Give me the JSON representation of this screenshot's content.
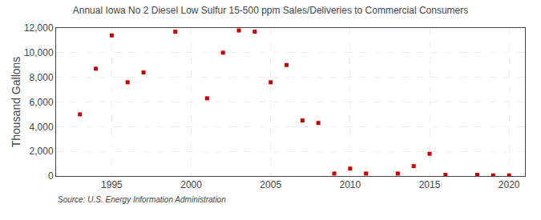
{
  "chart_data": {
    "type": "scatter",
    "title": "Annual Iowa No 2 Diesel Low Sulfur 15-500 ppm Sales/Deliveries to Commercial Consumers",
    "y_label": "Thousand Gallons",
    "annotations": [
      "Source: U.S. Energy Information Administration"
    ],
    "x": [
      1993,
      1994,
      1995,
      1996,
      1997,
      1999,
      2001,
      2002,
      2003,
      2004,
      2005,
      2006,
      2007,
      2008,
      2009,
      2010,
      2011,
      2013,
      2014,
      2015,
      2016,
      2018,
      2019,
      2020
    ],
    "values": [
      5000,
      8700,
      11400,
      7600,
      8400,
      11700,
      6300,
      10000,
      11800,
      11700,
      7600,
      9000,
      4500,
      4300,
      200,
      600,
      200,
      200,
      800,
      1800,
      100,
      100,
      50,
      50
    ],
    "color": "#cc0000",
    "marker": "square",
    "xlim": [
      1991.5,
      2021
    ],
    "xticks": [
      1995,
      2000,
      2005,
      2010,
      2015,
      2020
    ],
    "ylim": [
      0,
      12000
    ],
    "yticks": [
      0,
      {
        "value": 2000,
        "label": "2,000"
      },
      {
        "value": 4000,
        "label": "4,000"
      },
      {
        "value": 6000,
        "label": "6,000"
      },
      {
        "value": 8000,
        "label": "8,000"
      },
      {
        "value": 10000,
        "label": "10,000"
      },
      {
        "value": 12000,
        "label": "12,000"
      }
    ],
    "grid": true
  }
}
